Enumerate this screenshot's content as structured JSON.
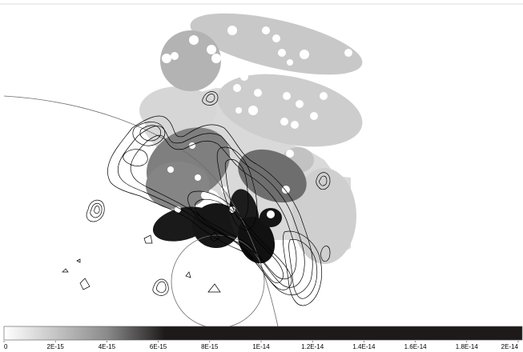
{
  "figure": {
    "type": "grayscale map with overlaid contours and region ellipses",
    "colors": {
      "background": "#ffffff",
      "light_region": "#d6d6d6",
      "mid_region": "#bdbdbd",
      "dark_region": "#808080",
      "darkest_region": "#1a1a1a",
      "contour": "#000000",
      "circle": "#6b6b6b",
      "colorbar_low": "#ffffff",
      "colorbar_high": "#1e1a1a"
    }
  },
  "colorbar": {
    "ticks": [
      "0",
      "2E-15",
      "4E-15",
      "6E-15",
      "8E-15",
      "1E-14",
      "1.2E-14",
      "1.4E-14",
      "1.6E-14",
      "1.8E-14",
      "2E-14"
    ],
    "min_value": 0,
    "max_value": 2e-14,
    "saturation_value": 6.6e-15
  }
}
